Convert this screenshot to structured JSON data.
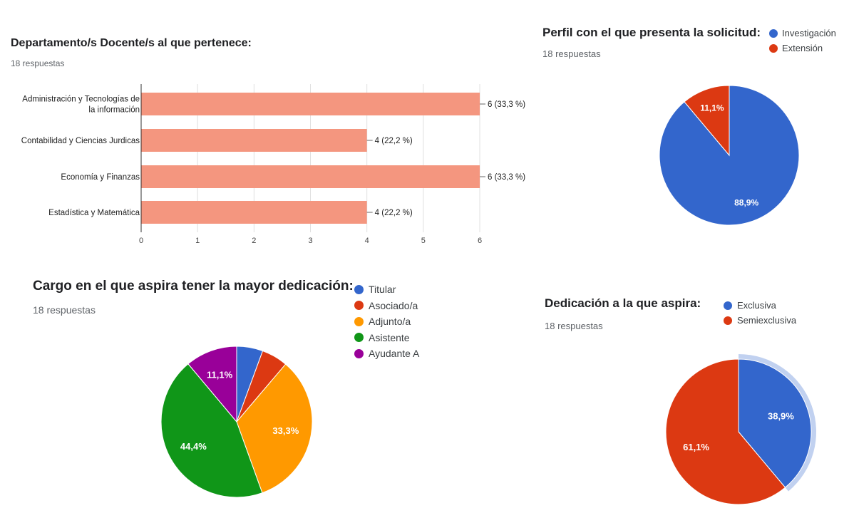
{
  "charts": {
    "departamento": {
      "title": "Departamento/s Docente/s al que pertenece:",
      "responses": "18 respuestas"
    },
    "perfil": {
      "title": "Perfil con el que presenta la solicitud:",
      "responses": "18 respuestas"
    },
    "cargo": {
      "title": "Cargo en el que aspira tener la mayor dedicación:",
      "responses": "18 respuestas"
    },
    "dedicacion": {
      "title": "Dedicación a la que aspira:",
      "responses": "18 respuestas"
    }
  },
  "colors": {
    "bar": "#f4967f",
    "blue": "#3366cc",
    "red": "#dc3912",
    "orange": "#ff9900",
    "green": "#109618",
    "purple": "#990099"
  },
  "chart_data": [
    {
      "type": "bar",
      "orientation": "horizontal",
      "title": "Departamento/s Docente/s al que pertenece:",
      "categories": [
        [
          "Administración y Tecnologías de",
          "la información"
        ],
        [
          "Contabilidad y Ciencias Jurdicas"
        ],
        [
          "Economía y Finanzas"
        ],
        [
          "Estadística y Matemática"
        ]
      ],
      "values": [
        6,
        4,
        6,
        4
      ],
      "data_labels": [
        "6 (33,3 %)",
        "4 (22,2 %)",
        "6 (33,3 %)",
        "4 (22,2 %)"
      ],
      "xlim": [
        0,
        6
      ],
      "xticks": [
        "0",
        "1",
        "2",
        "3",
        "4",
        "5",
        "6"
      ],
      "grid": true
    },
    {
      "type": "pie",
      "title": "Perfil con el que presenta la solicitud:",
      "slices": [
        {
          "label": "Investigación",
          "percent": 88.9,
          "display": "88,9%",
          "color": "#3366cc"
        },
        {
          "label": "Extensión",
          "percent": 11.1,
          "display": "11,1%",
          "color": "#dc3912"
        }
      ],
      "legend": "right"
    },
    {
      "type": "pie",
      "title": "Cargo en el que aspira tener la mayor dedicación:",
      "slices": [
        {
          "label": "Titular",
          "percent": 5.6,
          "display": "",
          "color": "#3366cc"
        },
        {
          "label": "Asociado/a",
          "percent": 5.6,
          "display": "",
          "color": "#dc3912"
        },
        {
          "label": "Adjunto/a",
          "percent": 33.3,
          "display": "33,3%",
          "color": "#ff9900"
        },
        {
          "label": "Asistente",
          "percent": 44.4,
          "display": "44,4%",
          "color": "#109618"
        },
        {
          "label": "Ayudante A",
          "percent": 11.1,
          "display": "11,1%",
          "color": "#990099"
        }
      ],
      "legend": "right"
    },
    {
      "type": "pie",
      "title": "Dedicación a la que aspira:",
      "slices": [
        {
          "label": "Exclusiva",
          "percent": 38.9,
          "display": "38,9%",
          "color": "#3366cc",
          "highlighted": true
        },
        {
          "label": "Semiexclusiva",
          "percent": 61.1,
          "display": "61,1%",
          "color": "#dc3912"
        }
      ],
      "legend": "right"
    }
  ]
}
